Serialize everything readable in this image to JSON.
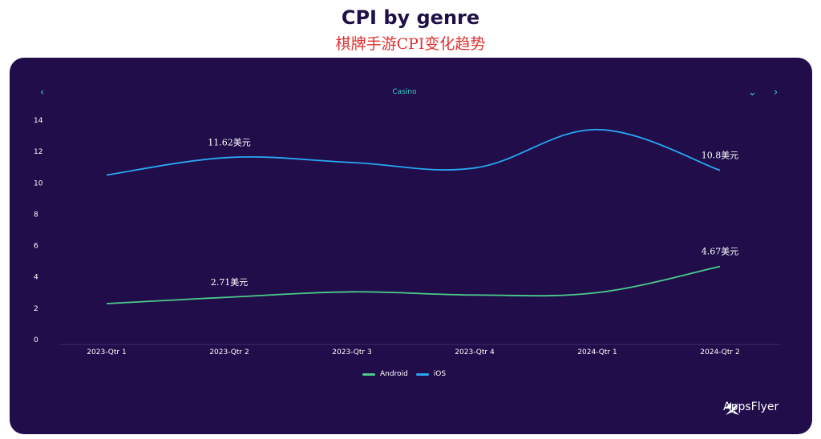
{
  "header": {
    "title": "CPI by genre",
    "subtitle": "棋牌手游CPI变化趋势"
  },
  "panel": {
    "category": "Casino",
    "prev_icon": "‹",
    "dropdown_icon": "⌄",
    "next_icon": "›",
    "logo_text": "AppsFlyer"
  },
  "colors": {
    "background": "#200d4a",
    "android": "#4ccc8c",
    "ios": "#2aa7f2",
    "accent": "#35d6c9"
  },
  "chart_data": {
    "type": "line",
    "categories": [
      "2023-Qtr 1",
      "2023-Qtr 2",
      "2023-Qtr 3",
      "2023-Qtr 4",
      "2024-Qtr 1",
      "2024-Qtr 2"
    ],
    "series": [
      {
        "name": "Android",
        "values": [
          2.3,
          2.71,
          3.05,
          2.85,
          3.0,
          4.67
        ]
      },
      {
        "name": "iOS",
        "values": [
          10.5,
          11.62,
          11.3,
          10.95,
          13.4,
          10.8
        ]
      }
    ],
    "annotations": [
      {
        "series": "iOS",
        "index": 1,
        "text": "11.62美元"
      },
      {
        "series": "iOS",
        "index": 5,
        "text": "10.8美元"
      },
      {
        "series": "Android",
        "index": 1,
        "text": "2.71美元"
      },
      {
        "series": "Android",
        "index": 5,
        "text": "4.67美元"
      }
    ],
    "yticks": [
      "0",
      "2",
      "4",
      "6",
      "8",
      "10",
      "12",
      "14"
    ],
    "ylim": [
      0,
      14
    ],
    "legend_position": "bottom",
    "grid": false
  }
}
